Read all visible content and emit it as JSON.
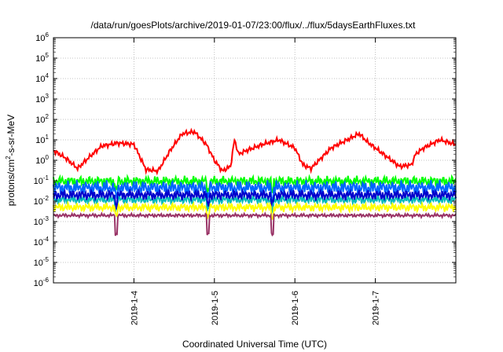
{
  "chart_data": {
    "type": "line",
    "title": "/data/run/goesPlots/archive/2019-01-07/23:00/flux/../flux/5daysEarthFluxes.txt",
    "xlabel": "Coordinated Universal Time (UTC)",
    "ylabel": {
      "base": "protons/cm",
      "sup": "2",
      "rest": "-s-sr-MeV"
    },
    "x_range": [
      "2019-01-03T00:00",
      "2019-01-08T00:00"
    ],
    "x_ticks": [
      "2019-1-4",
      "2019-1-5",
      "2019-1-6",
      "2019-1-7"
    ],
    "y_scale": "log",
    "ylim": [
      1e-06,
      1000000.0
    ],
    "y_tick_exponents": [
      -6,
      -5,
      -4,
      -3,
      -2,
      -1,
      0,
      1,
      2,
      3,
      4,
      5,
      6
    ],
    "grid": true,
    "series": [
      {
        "color": "#ff0000",
        "x_days": [
          0.0,
          0.15,
          0.3,
          0.45,
          0.6,
          0.8,
          1.0,
          1.15,
          1.3,
          1.45,
          1.6,
          1.75,
          1.9,
          2.0,
          2.1,
          2.2,
          2.25,
          2.3,
          2.4,
          2.6,
          2.8,
          3.0,
          3.1,
          3.2,
          3.3,
          3.45,
          3.6,
          3.8,
          3.9,
          4.1,
          4.3,
          4.45,
          4.5,
          4.6,
          4.8,
          5.0
        ],
        "values": [
          3,
          1.3,
          0.4,
          1.5,
          5,
          7,
          6,
          0.35,
          0.3,
          3,
          20,
          25,
          6,
          1,
          0.3,
          0.5,
          10,
          2,
          3,
          6,
          10,
          4,
          0.6,
          0.4,
          1,
          4,
          8,
          20,
          8,
          2,
          0.5,
          0.6,
          2,
          4,
          10,
          6
        ]
      },
      {
        "color": "#00ff00",
        "base": 0.095,
        "amp": 0.35,
        "phase": 1.3
      },
      {
        "color": "#0066ff",
        "base": 0.045,
        "amp": 0.5,
        "phase": 2.1
      },
      {
        "color": "#00bbbb",
        "base": 0.012,
        "amp": 0.3,
        "phase": 0.7
      },
      {
        "color": "#0000cc",
        "base": 0.02,
        "amp": 0.35,
        "phase": 3.4
      },
      {
        "color": "#ffff00",
        "base": 0.005,
        "amp": 0.3,
        "phase": 1.9
      },
      {
        "color": "#993366",
        "base": 0.002,
        "amp": 0.12,
        "phase": 0.4
      }
    ],
    "dips_days": [
      0.78,
      1.92,
      2.72
    ]
  }
}
